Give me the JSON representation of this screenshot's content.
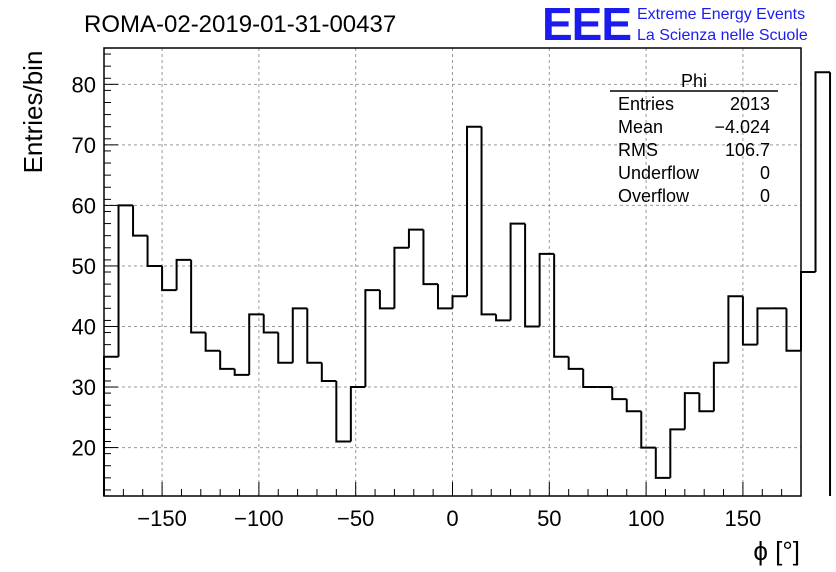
{
  "chart_data": {
    "type": "histogram",
    "title": "ROMA-02-2019-01-31-00437",
    "xlabel": "ϕ [°]",
    "ylabel": "Entries/bin",
    "xlim": [
      -180,
      180
    ],
    "ylim": [
      12,
      86
    ],
    "grid": true,
    "x_ticks": [
      -150,
      -100,
      -50,
      0,
      50,
      100,
      150
    ],
    "x_tick_labels": [
      "−150",
      "−100",
      "−50",
      "0",
      "50",
      "100",
      "150"
    ],
    "y_ticks": [
      20,
      30,
      40,
      50,
      60,
      70,
      80
    ],
    "y_tick_labels": [
      "20",
      "30",
      "40",
      "50",
      "60",
      "70",
      "80"
    ],
    "bin_edges_start": -180,
    "bin_width": 7.5,
    "values": [
      35,
      60,
      55,
      50,
      46,
      51,
      39,
      36,
      33,
      32,
      42,
      39,
      34,
      43,
      34,
      31,
      21,
      30,
      46,
      43,
      53,
      56,
      47,
      43,
      45,
      73,
      42,
      41,
      57,
      40,
      52,
      35,
      33,
      30,
      30,
      28,
      26,
      20,
      15,
      23,
      29,
      26,
      34,
      45,
      37,
      43,
      43,
      36,
      49,
      82
    ],
    "stats_box": {
      "title": "Phi",
      "rows": [
        {
          "label": "Entries",
          "value": "2013"
        },
        {
          "label": "Mean",
          "value": "−4.024"
        },
        {
          "label": "RMS",
          "value": "106.7"
        },
        {
          "label": "Underflow",
          "value": "0"
        },
        {
          "label": "Overflow",
          "value": "0"
        }
      ]
    },
    "colors": {
      "line": "#000000",
      "grid": "#9a9a9a",
      "logo": "#1b1bf0"
    }
  },
  "logo": {
    "mark": "EEE",
    "line1": "Extreme Energy Events",
    "line2": "La Scienza nelle Scuole"
  }
}
